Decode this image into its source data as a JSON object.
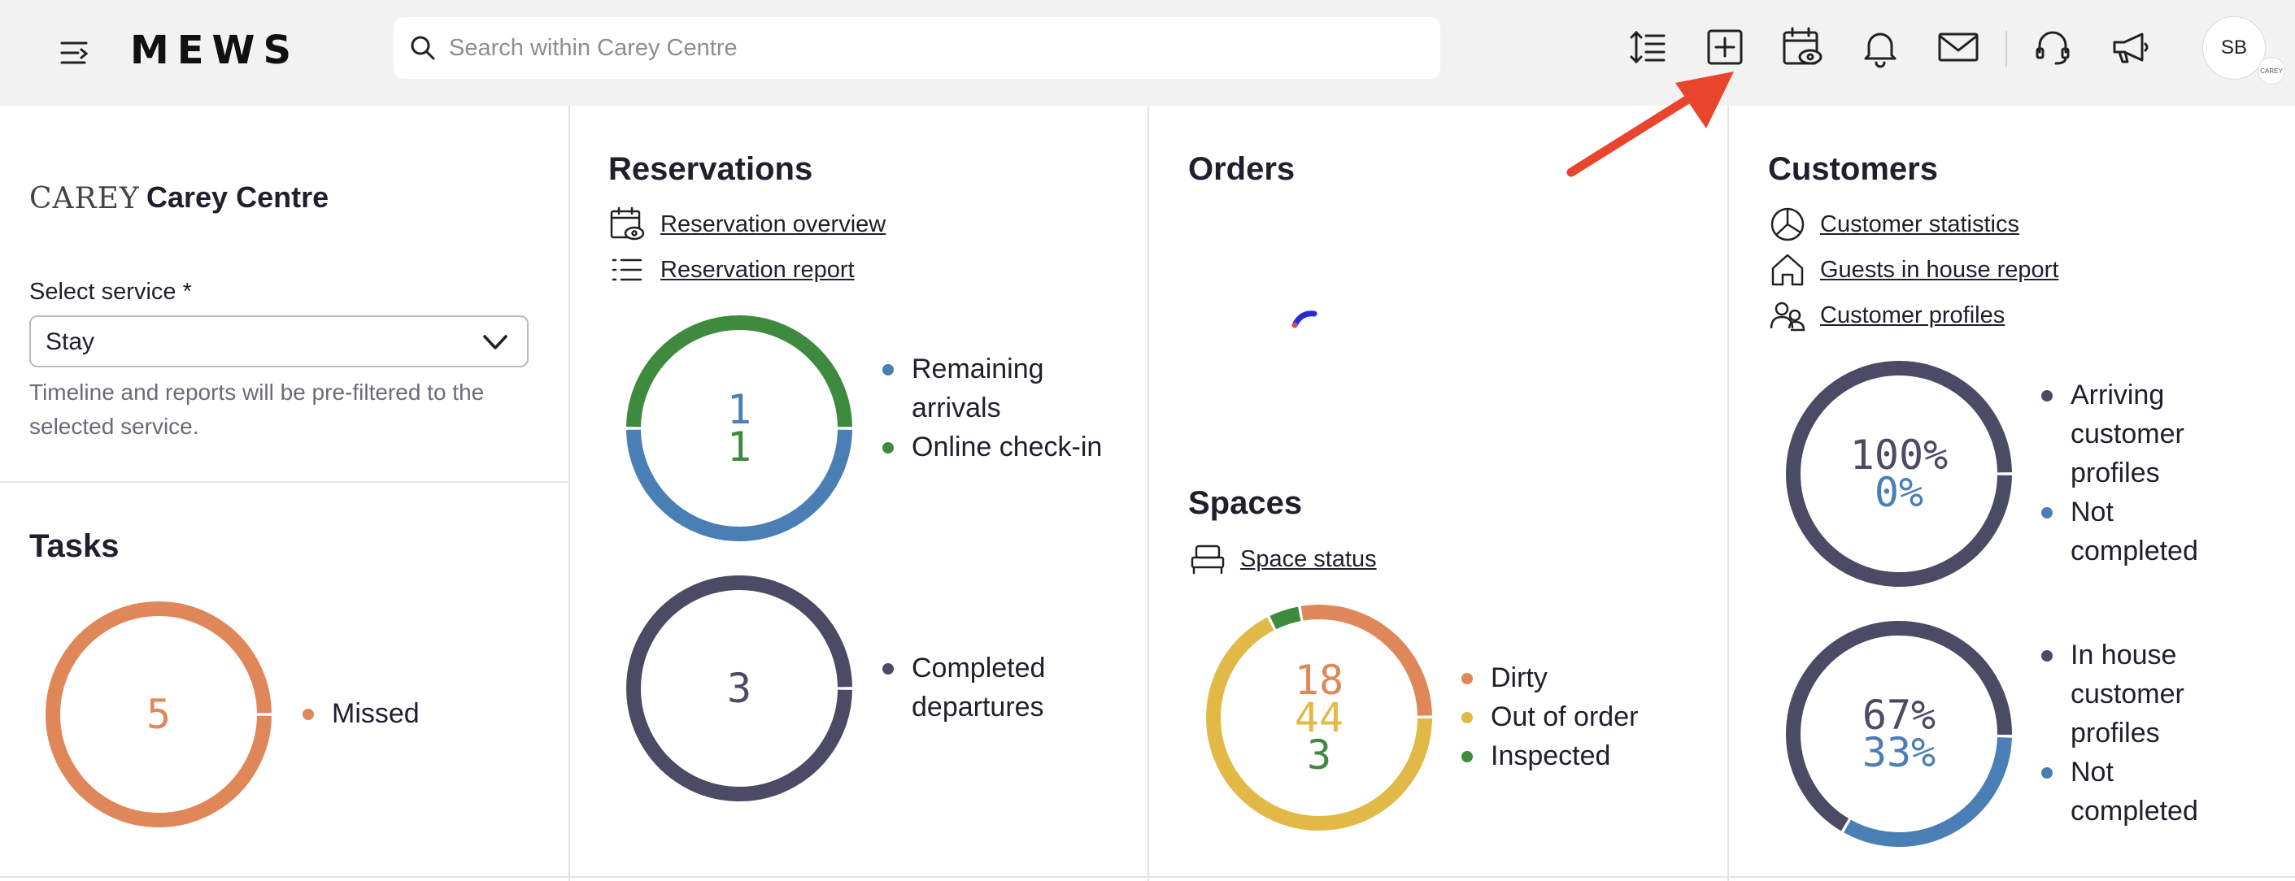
{
  "header": {
    "logo": "MEWS",
    "search_placeholder": "Search within Carey Centre",
    "icons": [
      "row-height-icon",
      "plus-square-icon",
      "calendar-eye-icon",
      "bell-icon",
      "mail-icon",
      "headset-icon",
      "megaphone-icon"
    ],
    "avatar_initials": "SB",
    "avatar_badge": "CAREY"
  },
  "property": {
    "logo_text": "CAREY",
    "name": "Carey Centre",
    "service_label": "Select service *",
    "service_value": "Stay",
    "helper_text": "Timeline and reports will be pre-filtered to the selected service."
  },
  "tasks": {
    "title": "Tasks",
    "value": "5",
    "legend": [
      "Missed"
    ],
    "color": "#e0875a"
  },
  "reservations": {
    "title": "Reservations",
    "links": [
      "Reservation overview",
      "Reservation report"
    ],
    "chart1": {
      "values": [
        "1",
        "1"
      ],
      "legend": [
        "Remaining arrivals",
        "Online check-in"
      ],
      "colors": [
        "#4a7fb5",
        "#3e8a3e"
      ]
    },
    "chart2": {
      "value": "3",
      "legend": [
        "Completed departures"
      ],
      "color": "#4b4b66"
    }
  },
  "orders": {
    "title": "Orders"
  },
  "spaces": {
    "title": "Spaces",
    "link": "Space status",
    "values": [
      "18",
      "44",
      "3"
    ],
    "legend": [
      "Dirty",
      "Out of order",
      "Inspected"
    ],
    "colors": [
      "#e0875a",
      "#e2b946",
      "#3e8a3e"
    ]
  },
  "customers": {
    "title": "Customers",
    "links": [
      "Customer statistics",
      "Guests in house report",
      "Customer profiles"
    ],
    "chart1": {
      "values": [
        "100%",
        "0%"
      ],
      "legend": [
        "Arriving customer profiles",
        "Not completed"
      ],
      "colors": [
        "#4b4b66",
        "#4a7fb5"
      ]
    },
    "chart2": {
      "values": [
        "67%",
        "33%"
      ],
      "legend": [
        "In house customer profiles",
        "Not completed"
      ],
      "colors": [
        "#4b4b66",
        "#4a7fb5"
      ]
    }
  },
  "chart_data": [
    {
      "type": "pie",
      "title": "Tasks",
      "categories": [
        "Missed"
      ],
      "values": [
        5
      ]
    },
    {
      "type": "pie",
      "title": "Reservations",
      "categories": [
        "Remaining arrivals",
        "Online check-in"
      ],
      "values": [
        1,
        1
      ]
    },
    {
      "type": "pie",
      "title": "Reservations",
      "categories": [
        "Completed departures"
      ],
      "values": [
        3
      ]
    },
    {
      "type": "pie",
      "title": "Spaces",
      "categories": [
        "Dirty",
        "Out of order",
        "Inspected"
      ],
      "values": [
        18,
        44,
        3
      ]
    },
    {
      "type": "pie",
      "title": "Customers",
      "categories": [
        "Arriving customer profiles",
        "Not completed"
      ],
      "values": [
        100,
        0
      ]
    },
    {
      "type": "pie",
      "title": "Customers",
      "categories": [
        "In house customer profiles",
        "Not completed"
      ],
      "values": [
        67,
        33
      ]
    }
  ]
}
